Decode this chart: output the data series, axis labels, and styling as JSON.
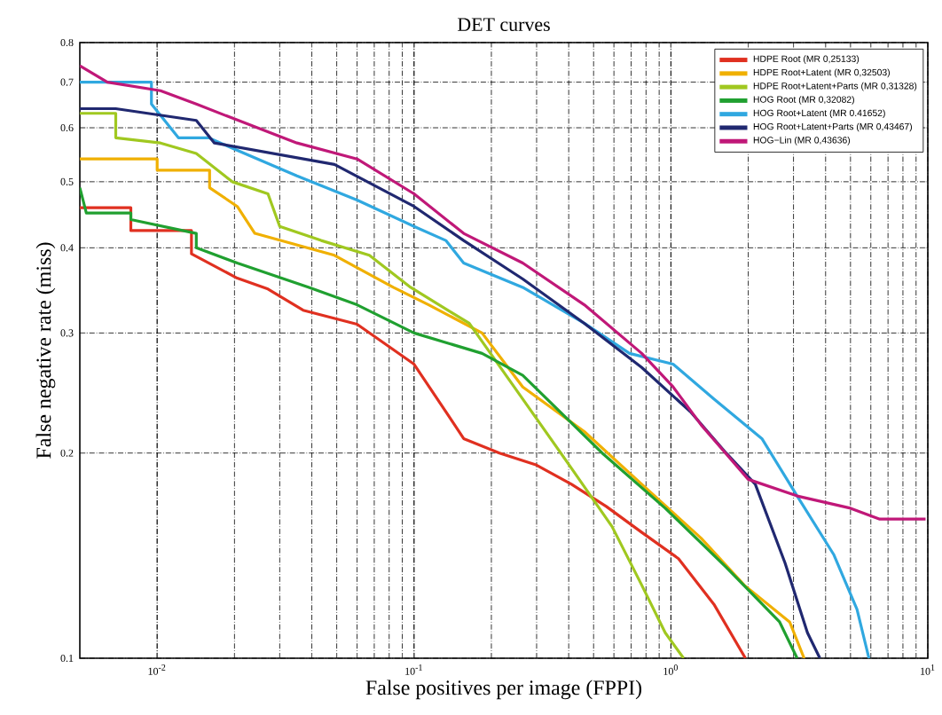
{
  "chart_data": {
    "type": "line",
    "title": "DET curves",
    "xlabel": "False positives per image (FPPI)",
    "ylabel": "False negative rate (miss)",
    "log": "xy",
    "grid": true,
    "legend": "top right",
    "marker": "none",
    "line_style": "solid",
    "xlim": [
      0.005,
      10
    ],
    "ylim": [
      0.1,
      0.8
    ],
    "xticks": [
      {
        "value": 0.01,
        "label": "10$^{-2}$"
      },
      {
        "value": 0.1,
        "label": "10$^{-1}$"
      },
      {
        "value": 1,
        "label": "10$^{0}$"
      },
      {
        "value": 10,
        "label": "10$^{1}$"
      }
    ],
    "yticks": [
      0.1,
      0.2,
      0.3,
      0.4,
      0.5,
      0.6,
      0.7,
      0.8
    ],
    "series": [
      {
        "name": "HDPE Root (MR 0,25133)",
        "color": "#e03020",
        "x": [
          0.005,
          0.0079,
          0.0079,
          0.0136,
          0.0136,
          0.0205,
          0.027,
          0.037,
          0.06,
          0.1,
          0.133,
          0.156,
          0.215,
          0.3,
          0.41,
          0.56,
          0.77,
          1.07,
          1.47,
          1.95
        ],
        "values": [
          0.458,
          0.458,
          0.424,
          0.424,
          0.392,
          0.361,
          0.348,
          0.324,
          0.309,
          0.27,
          0.23,
          0.21,
          0.2,
          0.192,
          0.18,
          0.167,
          0.153,
          0.14,
          0.12,
          0.1
        ]
      },
      {
        "name": "HDPE Root+Latent (MR 0,32503)",
        "color": "#f0b000",
        "x": [
          0.005,
          0.01,
          0.01,
          0.016,
          0.016,
          0.0205,
          0.024,
          0.049,
          0.083,
          0.114,
          0.184,
          0.265,
          0.46,
          0.77,
          1.31,
          1.93,
          2.9,
          3.3
        ],
        "values": [
          0.54,
          0.54,
          0.52,
          0.52,
          0.49,
          0.46,
          0.42,
          0.39,
          0.35,
          0.33,
          0.3,
          0.25,
          0.215,
          0.18,
          0.15,
          0.128,
          0.113,
          0.1
        ]
      },
      {
        "name": "HDPE Root+Latent+Parts (MR 0,31328)",
        "color": "#a0c820",
        "x": [
          0.005,
          0.0069,
          0.0069,
          0.0103,
          0.0142,
          0.0196,
          0.027,
          0.03,
          0.0435,
          0.067,
          0.097,
          0.164,
          0.265,
          0.41,
          0.59,
          0.77,
          0.95,
          1.12
        ],
        "values": [
          0.63,
          0.63,
          0.58,
          0.57,
          0.55,
          0.5,
          0.48,
          0.43,
          0.41,
          0.39,
          0.35,
          0.31,
          0.24,
          0.19,
          0.156,
          0.128,
          0.109,
          0.1
        ]
      },
      {
        "name": "HOG Root (MR 0,32082)",
        "color": "#20a030",
        "x": [
          0.005,
          0.0053,
          0.0079,
          0.0079,
          0.0142,
          0.0142,
          0.0205,
          0.039,
          0.06,
          0.1,
          0.184,
          0.265,
          0.54,
          0.95,
          1.64,
          2.65,
          3.1
        ],
        "values": [
          0.49,
          0.45,
          0.45,
          0.44,
          0.42,
          0.4,
          0.38,
          0.35,
          0.33,
          0.3,
          0.28,
          0.26,
          0.2,
          0.166,
          0.136,
          0.113,
          0.1
        ]
      },
      {
        "name": "HOG Root+Latent (MR 0.41652)",
        "color": "#30a8e0",
        "x": [
          0.005,
          0.0095,
          0.0095,
          0.0121,
          0.0159,
          0.0196,
          0.035,
          0.06,
          0.1,
          0.133,
          0.156,
          0.265,
          0.46,
          0.69,
          1.02,
          1.47,
          2.26,
          3.1,
          4.3,
          5.3,
          5.9
        ],
        "values": [
          0.7,
          0.7,
          0.65,
          0.58,
          0.58,
          0.56,
          0.51,
          0.47,
          0.43,
          0.41,
          0.38,
          0.35,
          0.31,
          0.28,
          0.27,
          0.24,
          0.21,
          0.173,
          0.142,
          0.118,
          0.1
        ]
      },
      {
        "name": "HOG Root+Latent+Parts (MR 0,43467)",
        "color": "#202870",
        "x": [
          0.005,
          0.0069,
          0.0142,
          0.0167,
          0.049,
          0.1,
          0.156,
          0.265,
          0.46,
          0.77,
          1.19,
          1.64,
          2.13,
          2.78,
          3.4,
          3.8
        ],
        "values": [
          0.64,
          0.64,
          0.615,
          0.57,
          0.53,
          0.46,
          0.41,
          0.36,
          0.31,
          0.267,
          0.23,
          0.2,
          0.18,
          0.138,
          0.109,
          0.1
        ]
      },
      {
        "name": "HOG−Lin (MR 0,43636)",
        "color": "#c01878",
        "x": [
          0.005,
          0.0064,
          0.0103,
          0.0142,
          0.0196,
          0.035,
          0.06,
          0.1,
          0.156,
          0.265,
          0.46,
          0.77,
          1.02,
          1.31,
          2.0,
          3.1,
          5.0,
          6.5,
          9.8
        ],
        "values": [
          0.74,
          0.7,
          0.68,
          0.65,
          0.62,
          0.57,
          0.54,
          0.48,
          0.42,
          0.38,
          0.33,
          0.28,
          0.25,
          0.22,
          0.183,
          0.173,
          0.166,
          0.16,
          0.16
        ]
      }
    ]
  }
}
